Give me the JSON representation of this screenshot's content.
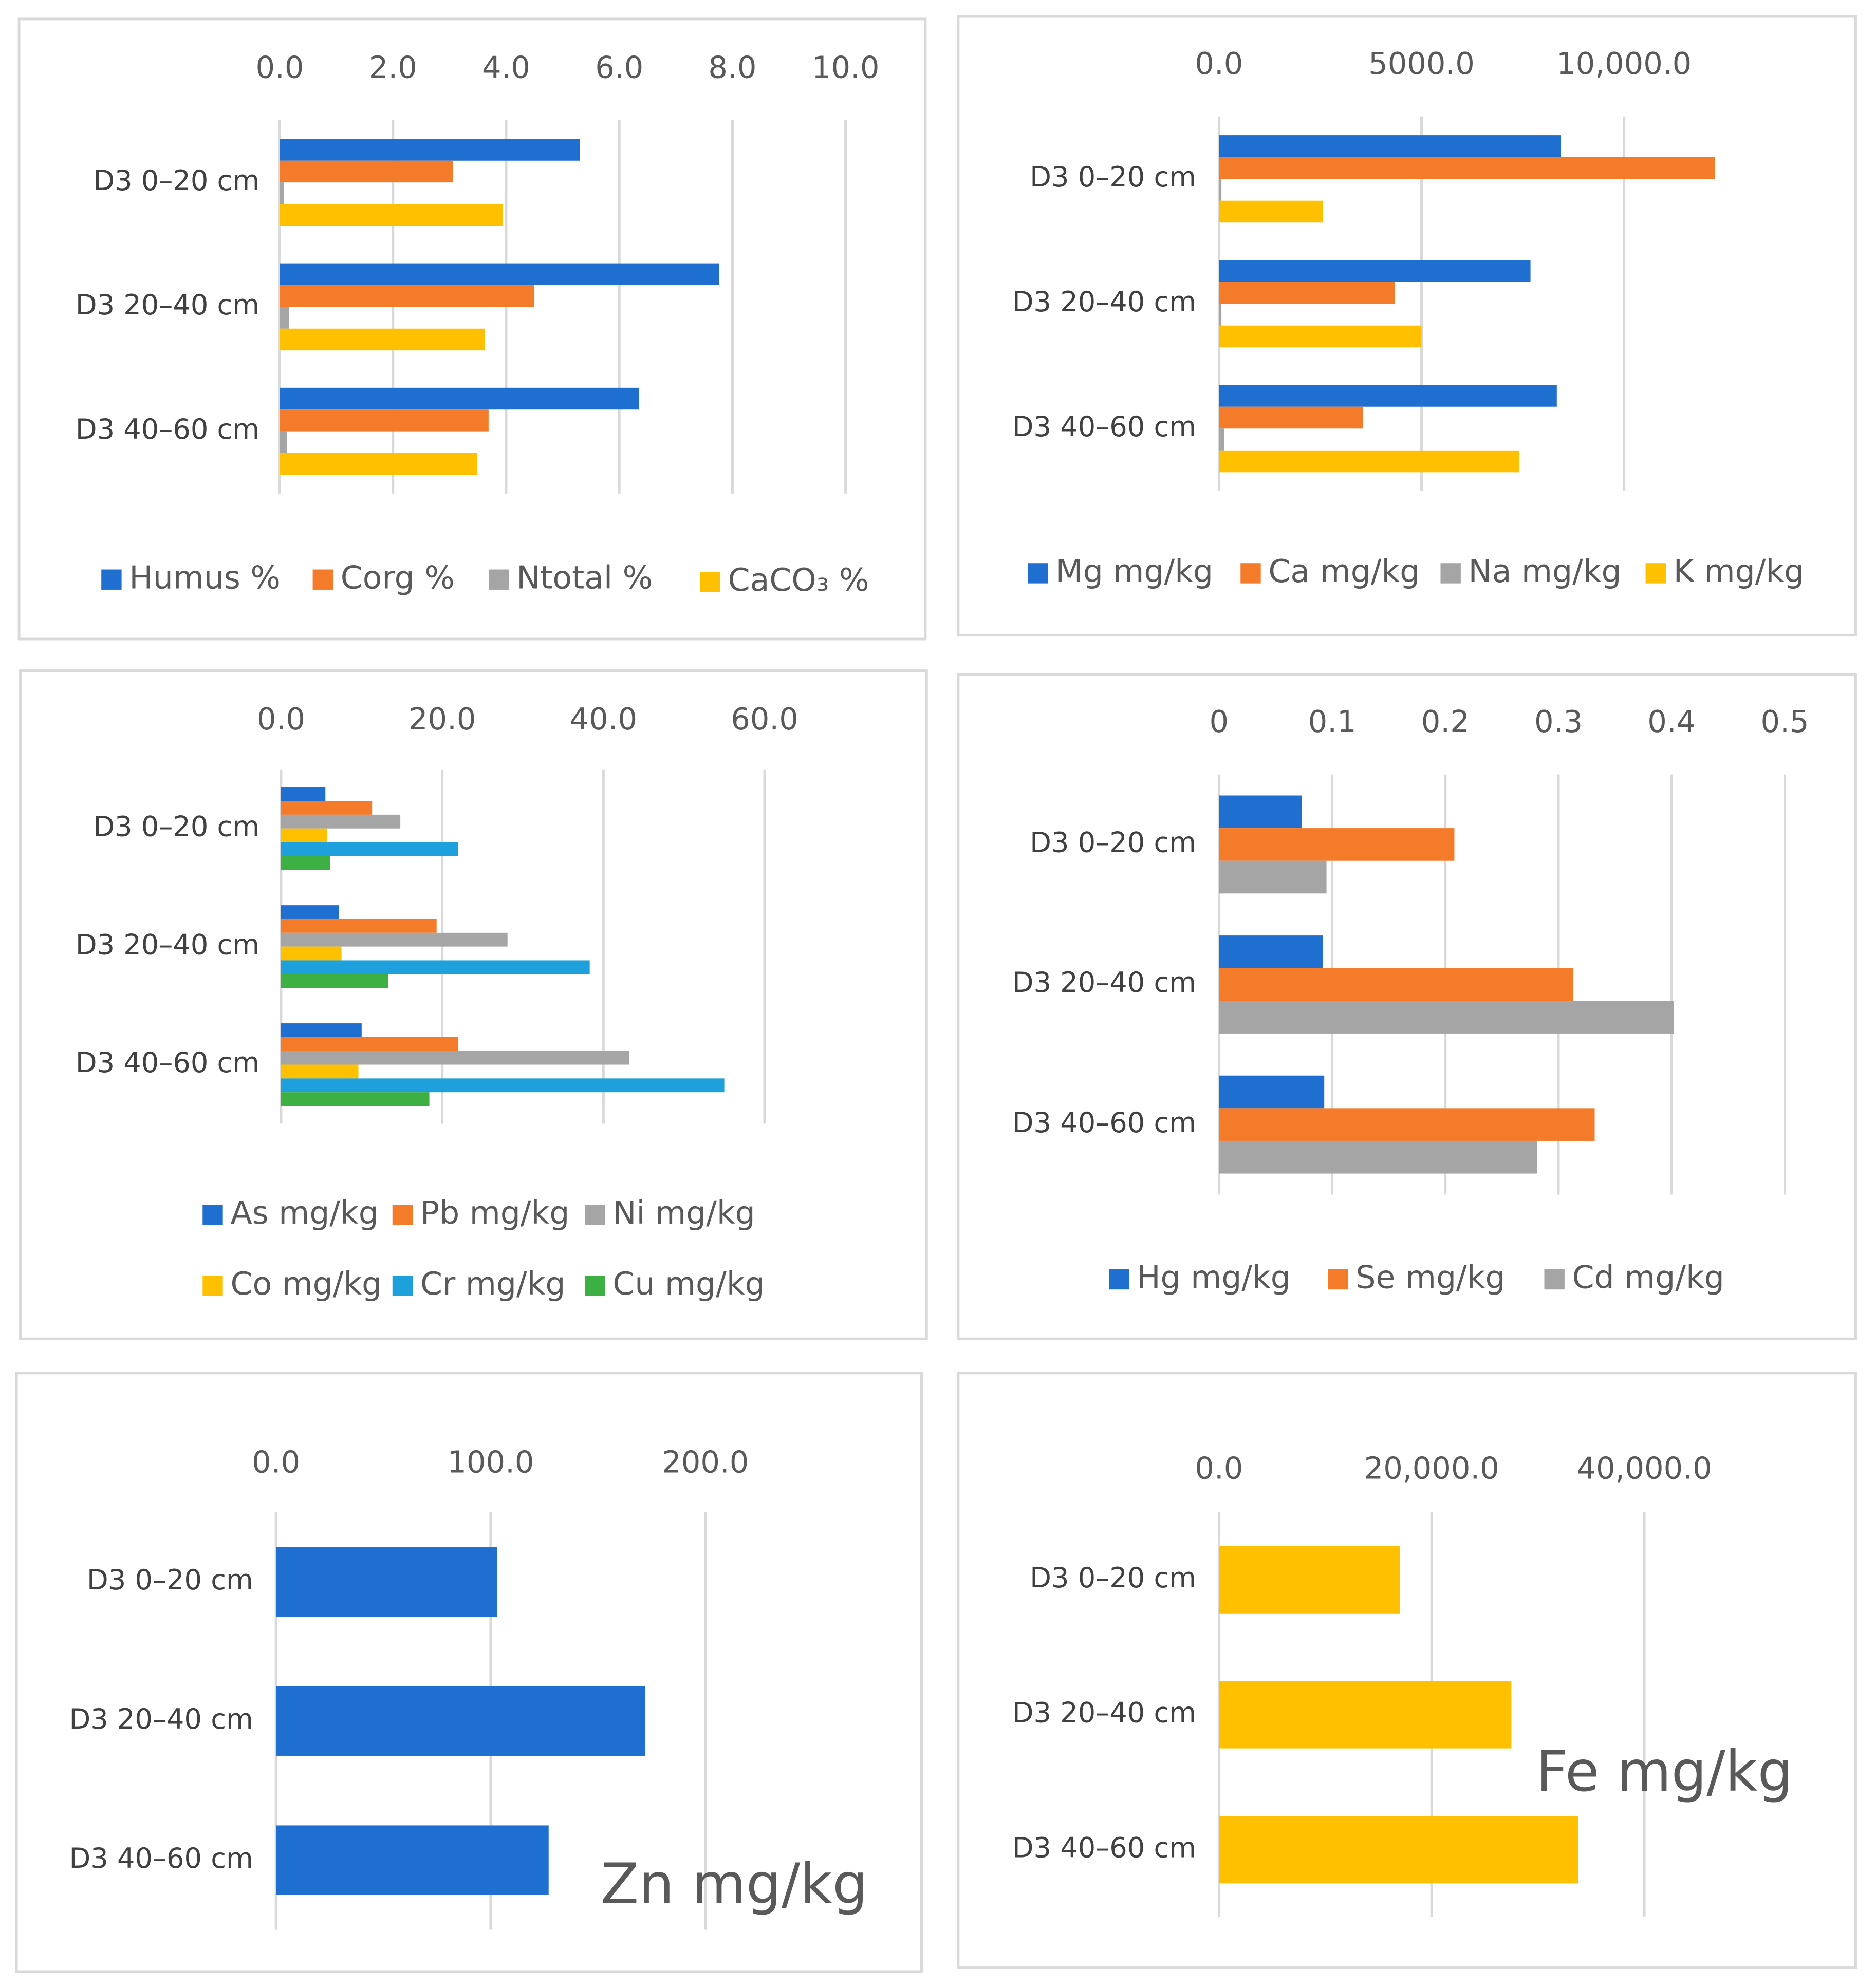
{
  "chart_data": [
    {
      "type": "bar",
      "orientation": "horizontal",
      "grid": true,
      "categories": [
        "D3 0–20 cm",
        "D3 20–40 cm",
        "D3 40–60 cm"
      ],
      "series": [
        {
          "name": "Humus %",
          "color": "#1f6fd1",
          "values": [
            5.3,
            7.76,
            6.35
          ]
        },
        {
          "name": "Corg %",
          "color": "#f47b2a",
          "values": [
            3.06,
            4.5,
            3.69
          ]
        },
        {
          "name": "Ntotal %",
          "color": "#a5a5a5",
          "values": [
            0.07,
            0.16,
            0.13
          ]
        },
        {
          "name": "CaCO₃ %",
          "color": "#ffc000",
          "values": [
            3.94,
            3.62,
            3.49
          ]
        }
      ],
      "xlim": [
        0,
        10
      ],
      "xticks": [
        {
          "value": 0,
          "label": "0.0"
        },
        {
          "value": 2,
          "label": "2.0"
        },
        {
          "value": 4,
          "label": "4.0"
        },
        {
          "value": 6,
          "label": "6.0"
        },
        {
          "value": 8,
          "label": "8.0"
        },
        {
          "value": 10,
          "label": "10.0"
        }
      ]
    },
    {
      "type": "bar",
      "orientation": "horizontal",
      "grid": true,
      "categories": [
        "D3 0–20 cm",
        "D3 20–40 cm",
        "D3 40–60 cm"
      ],
      "series": [
        {
          "name": "Mg mg/kg",
          "color": "#1f6fd1",
          "values": [
            8440,
            7690,
            8340
          ]
        },
        {
          "name": "Ca mg/kg",
          "color": "#f47b2a",
          "values": [
            12250,
            4340,
            3560
          ]
        },
        {
          "name": "Na mg/kg",
          "color": "#a5a5a5",
          "values": [
            60,
            60,
            125
          ]
        },
        {
          "name": "K mg/kg",
          "color": "#ffc000",
          "values": [
            2560,
            5000,
            7410
          ]
        }
      ],
      "xlim": [
        0,
        12500
      ],
      "xticks": [
        {
          "value": 0,
          "label": "0.0"
        },
        {
          "value": 5000,
          "label": "5000.0"
        },
        {
          "value": 10000,
          "label": "10,000.0"
        }
      ]
    },
    {
      "type": "bar",
      "orientation": "horizontal",
      "grid": true,
      "categories": [
        "D3 0–20 cm",
        "D3 20–40 cm",
        "D3 40–60 cm"
      ],
      "series": [
        {
          "name": "As mg/kg",
          "color": "#1f6fd1",
          "values": [
            5.5,
            7.2,
            10
          ]
        },
        {
          "name": "Pb mg/kg",
          "color": "#f47b2a",
          "values": [
            11.3,
            19.3,
            22
          ]
        },
        {
          "name": "Ni mg/kg",
          "color": "#a5a5a5",
          "values": [
            14.8,
            28.1,
            43.2
          ]
        },
        {
          "name": "Co mg/kg",
          "color": "#ffc000",
          "values": [
            5.7,
            7.5,
            9.6
          ]
        },
        {
          "name": "Cr mg/kg",
          "color": "#1ea0dc",
          "values": [
            22,
            38.3,
            55
          ]
        },
        {
          "name": "Cu mg/kg",
          "color": "#3cb043",
          "values": [
            6.1,
            13.3,
            18.4
          ]
        }
      ],
      "xlim": [
        0,
        60
      ],
      "xticks": [
        {
          "value": 0,
          "label": "0.0"
        },
        {
          "value": 20,
          "label": "20.0"
        },
        {
          "value": 40,
          "label": "40.0"
        },
        {
          "value": 60,
          "label": "60.0"
        }
      ]
    },
    {
      "type": "bar",
      "orientation": "horizontal",
      "grid": true,
      "categories": [
        "D3 0–20 cm",
        "D3 20–40 cm",
        "D3 40–60 cm"
      ],
      "series": [
        {
          "name": "Hg mg/kg",
          "color": "#1f6fd1",
          "values": [
            0.073,
            0.092,
            0.093
          ]
        },
        {
          "name": "Se mg/kg",
          "color": "#f47b2a",
          "values": [
            0.208,
            0.313,
            0.332
          ]
        },
        {
          "name": "Cd mg/kg",
          "color": "#a5a5a5",
          "values": [
            0.095,
            0.402,
            0.281
          ]
        }
      ],
      "xlim": [
        0,
        0.5
      ],
      "xticks": [
        0,
        0.1,
        0.2,
        0.3,
        0.4,
        0.5
      ]
    },
    {
      "type": "bar",
      "orientation": "horizontal",
      "grid": true,
      "categories": [
        "D3 0–20 cm",
        "D3 20–40 cm",
        "D3 40–60 cm"
      ],
      "series": [
        {
          "name": "Zn mg/kg",
          "color": "#1f6fd1",
          "values": [
            103,
            172,
            127
          ]
        }
      ],
      "xlim": [
        0,
        250
      ],
      "xticks": [
        {
          "value": 0,
          "label": "0.0"
        },
        {
          "value": 100,
          "label": "100.0"
        },
        {
          "value": 200,
          "label": "200.0"
        }
      ]
    },
    {
      "type": "bar",
      "orientation": "horizontal",
      "grid": true,
      "categories": [
        "D3 0–20 cm",
        "D3 20–40 cm",
        "D3 40–60 cm"
      ],
      "series": [
        {
          "name": "Fe mg/kg",
          "color": "#ffc000",
          "values": [
            17000,
            27500,
            33800
          ]
        }
      ],
      "xlim": [
        0,
        40000
      ],
      "xticks": [
        {
          "value": 0,
          "label": "0.0"
        },
        {
          "value": 20000,
          "label": "20,000.0"
        },
        {
          "value": 40000,
          "label": "40,000.0"
        }
      ]
    }
  ]
}
